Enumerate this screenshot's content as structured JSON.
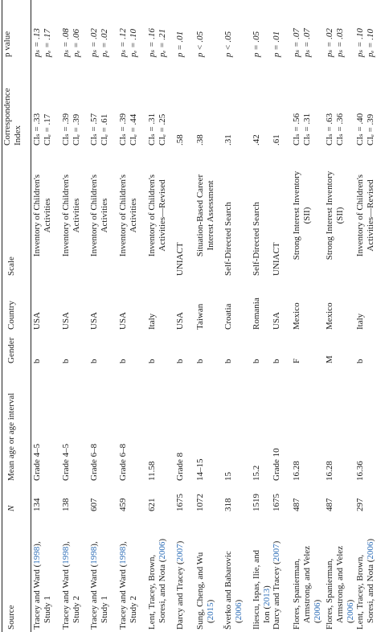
{
  "table": {
    "headers": {
      "source": "Source",
      "n": "N",
      "age": "Mean age or age interval",
      "gender": "Gender",
      "country": "Country",
      "scale": "Scale",
      "ci_line1": "Correspondence",
      "ci_line2": "Index",
      "p": "p value"
    },
    "rows": [
      {
        "source": [
          "Tracey and Ward (",
          "1998",
          "),",
          "Study 1"
        ],
        "n": "134",
        "age": "Grade 4–5",
        "gender": "b",
        "country": "USA",
        "scale": [
          "Inventory of Children's",
          "Activities"
        ],
        "ci": [
          "CIₛ = .33",
          "CIₑ = .17"
        ],
        "p": [
          "pₛ = .13",
          "pₑ = .17"
        ]
      },
      {
        "source": [
          "Tracey and Ward (",
          "1998",
          "),",
          "Study 2"
        ],
        "n": "138",
        "age": "Grade 4–5",
        "gender": "b",
        "country": "USA",
        "scale": [
          "Inventory of Children's",
          "Activities"
        ],
        "ci": [
          "CIₛ = .39",
          "CIₑ = .39"
        ],
        "p": [
          "pₛ = .08",
          "pₑ = .06"
        ]
      },
      {
        "source": [
          "Tracey and Ward (",
          "1998",
          "),",
          "Study 1"
        ],
        "n": "607",
        "age": "Grade 6–8",
        "gender": "b",
        "country": "USA",
        "scale": [
          "Inventory of Children's",
          "Activities"
        ],
        "ci": [
          "CIₛ = .57",
          "CIₑ = .61"
        ],
        "p": [
          "pₛ = .02",
          "pₑ = .02"
        ]
      },
      {
        "source": [
          "Tracey and Ward (",
          "1998",
          "),",
          "Study 2"
        ],
        "n": "459",
        "age": "Grade 6–8",
        "gender": "b",
        "country": "USA",
        "scale": [
          "Inventory of Children's",
          "Activities"
        ],
        "ci": [
          "CIₛ = .39",
          "CIₑ = .44"
        ],
        "p": [
          "pₛ = .12",
          "pₑ = .10"
        ]
      },
      {
        "source": [
          "Lent, Tracey, Brown,",
          "Soresi, and Nota (",
          "2006",
          ")"
        ],
        "n": "621",
        "age": "11.58",
        "gender": "b",
        "country": "Italy",
        "scale": [
          "Inventory of Children's",
          "Activities—Revised"
        ],
        "ci": [
          "CIₛ = .31",
          "CIₑ = .25"
        ],
        "p": [
          "pₛ = .16",
          "pₑ = .21"
        ]
      },
      {
        "source": [
          "Darcy and Tracey (",
          "2007",
          ")"
        ],
        "n": "1675",
        "age": "Grade 8",
        "gender": "b",
        "country": "USA",
        "scale": [
          "UNIACT"
        ],
        "ci": [
          ".58"
        ],
        "p": [
          "p = .01"
        ]
      },
      {
        "source": [
          "Sung, Cheng, and Wu",
          "(",
          "2015",
          ")"
        ],
        "n": "1072",
        "age": "14–15",
        "gender": "b",
        "country": "Taiwan",
        "scale": [
          "Situation-Based Career",
          "Interest Assessment"
        ],
        "ci": [
          ".38"
        ],
        "p": [
          "p < .05"
        ]
      },
      {
        "source": [
          "Šverko and Babarovic",
          "(",
          "2006",
          ")"
        ],
        "n": "318",
        "age": "15",
        "gender": "b",
        "country": "Croatia",
        "scale": [
          "Self-Directed Search"
        ],
        "ci": [
          ".31"
        ],
        "p": [
          "p < .05"
        ]
      },
      {
        "source": [
          "Iliescu, Ispas, Ilie, and",
          "Ion (",
          "2013",
          ")"
        ],
        "n": "1519",
        "age": "15.2",
        "gender": "b",
        "country": "Romania",
        "scale": [
          "Self-Directed Search"
        ],
        "ci": [
          ".42"
        ],
        "p": [
          "p = .05"
        ]
      },
      {
        "source": [
          "Darcy and Tracey (",
          "2007",
          ")"
        ],
        "n": "1675",
        "age": "Grade 10",
        "gender": "b",
        "country": "USA",
        "scale": [
          "UNIACT"
        ],
        "ci": [
          ".61"
        ],
        "p": [
          "p = .01"
        ]
      },
      {
        "source": [
          "Flores, Spanierman,",
          "Armstrong, and Velez",
          "(",
          "2006",
          ")"
        ],
        "n": "487",
        "age": "16.28",
        "gender": "F",
        "country": "Mexico",
        "scale": [
          "Strong Interest Inventory",
          "(SII)"
        ],
        "ci": [
          "CIₛ = .56",
          "CIₛ = .31"
        ],
        "p": [
          "pₛ = .07",
          "pₛ = .07"
        ]
      },
      {
        "source": [
          "Flores, Spanierman,",
          "Armstrong, and Velez",
          "(",
          "2006",
          ")"
        ],
        "n": "487",
        "age": "16.28",
        "gender": "M",
        "country": "Mexico",
        "scale": [
          "Strong Interest Inventory",
          "(SII)"
        ],
        "ci": [
          "CIₛ = .63",
          "CIₛ = .36"
        ],
        "p": [
          "pₛ = .02",
          "pₛ = .03"
        ]
      },
      {
        "source": [
          "Lent, Tracey, Brown,",
          "Soresi, and Nota (",
          "2006",
          ")"
        ],
        "n": "297",
        "age": "16.36",
        "gender": "b",
        "country": "Italy",
        "scale": [
          "Inventory of Children's",
          "Activities—Revised"
        ],
        "ci": [
          "CIₛ = .40",
          "CIₑ = .39"
        ],
        "p": [
          "pₛ = .10",
          "pₑ = .10"
        ]
      }
    ]
  }
}
